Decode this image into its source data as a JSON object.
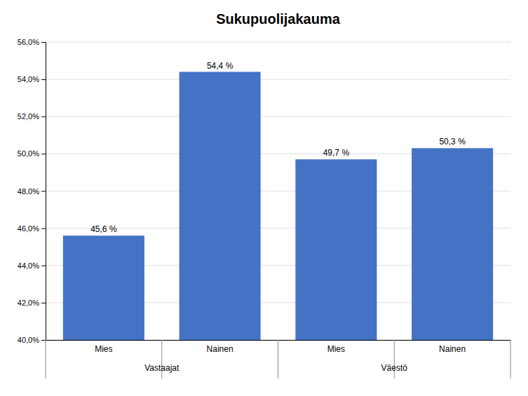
{
  "chart_data": {
    "type": "bar",
    "title": "Sukupuolijakauma",
    "categories": [
      "Mies",
      "Nainen",
      "Mies",
      "Nainen"
    ],
    "values": [
      45.6,
      54.4,
      49.7,
      50.3
    ],
    "value_labels": [
      "45,6 %",
      "54,4 %",
      "49,7 %",
      "50,3 %"
    ],
    "data_labels": true,
    "group_labels": [
      "Vastaajat",
      "Väestö"
    ],
    "color": "#4472C4",
    "ylim": [
      40.0,
      56.0
    ],
    "yticks": [
      {
        "value": 40.0,
        "label": "40,0%"
      },
      {
        "value": 42.0,
        "label": "42,0%"
      },
      {
        "value": 44.0,
        "label": "44,0%"
      },
      {
        "value": 46.0,
        "label": "46,0%"
      },
      {
        "value": 48.0,
        "label": "48,0%"
      },
      {
        "value": 50.0,
        "label": "50,0%"
      },
      {
        "value": 52.0,
        "label": "52,0%"
      },
      {
        "value": 54.0,
        "label": "54,0%"
      },
      {
        "value": 56.0,
        "label": "56,0%"
      }
    ],
    "grid": true
  }
}
